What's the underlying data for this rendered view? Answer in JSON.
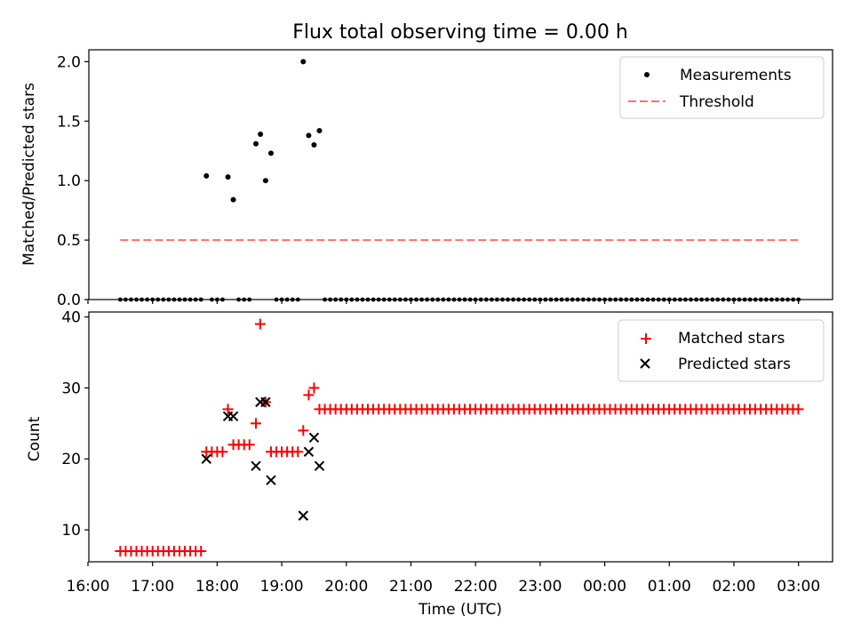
{
  "chart_data": {
    "title": "Flux total observing time = 0.00 h",
    "x_tick_labels": [
      "16:00",
      "17:00",
      "18:00",
      "19:00",
      "20:00",
      "21:00",
      "22:00",
      "23:00",
      "00:00",
      "01:00",
      "02:00",
      "03:00"
    ],
    "xlabel": "Time (UTC)",
    "x_unit": "hours since 16:00 UTC",
    "colors": {
      "measurement": "#000000",
      "threshold": "#ff6f6f",
      "matched": "#ff0000",
      "predicted": "#000000"
    },
    "panels": [
      {
        "type": "scatter",
        "ylabel": "Matched/Predicted stars",
        "ylim": [
          0,
          2.1
        ],
        "yticks": [
          0.0,
          0.5,
          1.0,
          1.5,
          2.0
        ],
        "ytick_labels": [
          "0.0",
          "0.5",
          "1.0",
          "1.5",
          "2.0"
        ],
        "legend_position": "top-right",
        "legend": [
          "Measurements",
          "Threshold"
        ],
        "measurements_nonzero": [
          {
            "x": 1.833,
            "y": 1.04
          },
          {
            "x": 2.167,
            "y": 1.03
          },
          {
            "x": 2.25,
            "y": 0.84
          },
          {
            "x": 2.6,
            "y": 1.31
          },
          {
            "x": 2.67,
            "y": 1.39
          },
          {
            "x": 2.75,
            "y": 1.0
          },
          {
            "x": 2.833,
            "y": 1.23
          },
          {
            "x": 3.333,
            "y": 2.0
          },
          {
            "x": 3.417,
            "y": 1.38
          },
          {
            "x": 3.5,
            "y": 1.3
          },
          {
            "x": 3.583,
            "y": 1.42
          }
        ],
        "zero_measurements_x": [
          0.5,
          0.583,
          0.667,
          0.75,
          0.833,
          0.917,
          1.0,
          1.083,
          1.167,
          1.25,
          1.333,
          1.417,
          1.5,
          1.583,
          1.667,
          1.75,
          1.917,
          2.0,
          2.083,
          2.333,
          2.417,
          2.5,
          2.917,
          3.0,
          3.083,
          3.167,
          3.25,
          3.667,
          3.75,
          3.833,
          3.917,
          4.0,
          4.083,
          4.167,
          4.25,
          4.333,
          4.417,
          4.5,
          4.583,
          4.667,
          4.75,
          4.833,
          4.917,
          5.0,
          5.083,
          5.167,
          5.25,
          5.333,
          5.417,
          5.5,
          5.583,
          5.667,
          5.75,
          5.833,
          5.917,
          6.0,
          6.083,
          6.167,
          6.25,
          6.333,
          6.417,
          6.5,
          6.583,
          6.667,
          6.75,
          6.833,
          6.917,
          7.0,
          7.083,
          7.167,
          7.25,
          7.333,
          7.417,
          7.5,
          7.583,
          7.667,
          7.75,
          7.833,
          7.917,
          8.0,
          8.083,
          8.167,
          8.25,
          8.333,
          8.417,
          8.5,
          8.583,
          8.667,
          8.75,
          8.833,
          8.917,
          9.0,
          9.083,
          9.167,
          9.25,
          9.333,
          9.417,
          9.5,
          9.583,
          9.667,
          9.75,
          9.833,
          9.917,
          10.0,
          10.083,
          10.167,
          10.25,
          10.333,
          10.417,
          10.5,
          10.583,
          10.667,
          10.75,
          10.833,
          10.917,
          11.0
        ],
        "threshold": {
          "y": 0.5,
          "x_start": 0.5,
          "x_end": 11.0
        }
      },
      {
        "type": "scatter",
        "ylabel": "Count",
        "ylim": [
          5.5,
          40.7
        ],
        "yticks": [
          10,
          20,
          30,
          40
        ],
        "ytick_labels": [
          "10",
          "20",
          "30",
          "40"
        ],
        "legend_position": "top-right",
        "legend": [
          "Matched stars",
          "Predicted stars"
        ],
        "matched_stars": [
          {
            "x": 0.5,
            "y": 7
          },
          {
            "x": 0.583,
            "y": 7
          },
          {
            "x": 0.667,
            "y": 7
          },
          {
            "x": 0.75,
            "y": 7
          },
          {
            "x": 0.833,
            "y": 7
          },
          {
            "x": 0.917,
            "y": 7
          },
          {
            "x": 1.0,
            "y": 7
          },
          {
            "x": 1.083,
            "y": 7
          },
          {
            "x": 1.167,
            "y": 7
          },
          {
            "x": 1.25,
            "y": 7
          },
          {
            "x": 1.333,
            "y": 7
          },
          {
            "x": 1.417,
            "y": 7
          },
          {
            "x": 1.5,
            "y": 7
          },
          {
            "x": 1.583,
            "y": 7
          },
          {
            "x": 1.667,
            "y": 7
          },
          {
            "x": 1.75,
            "y": 7
          },
          {
            "x": 1.833,
            "y": 21
          },
          {
            "x": 1.917,
            "y": 21
          },
          {
            "x": 2.0,
            "y": 21
          },
          {
            "x": 2.083,
            "y": 21
          },
          {
            "x": 2.167,
            "y": 27
          },
          {
            "x": 2.25,
            "y": 22
          },
          {
            "x": 2.333,
            "y": 22
          },
          {
            "x": 2.417,
            "y": 22
          },
          {
            "x": 2.5,
            "y": 22
          },
          {
            "x": 2.6,
            "y": 25
          },
          {
            "x": 2.667,
            "y": 39
          },
          {
            "x": 2.75,
            "y": 28
          },
          {
            "x": 2.833,
            "y": 21
          },
          {
            "x": 2.917,
            "y": 21
          },
          {
            "x": 3.0,
            "y": 21
          },
          {
            "x": 3.083,
            "y": 21
          },
          {
            "x": 3.167,
            "y": 21
          },
          {
            "x": 3.25,
            "y": 21
          },
          {
            "x": 3.333,
            "y": 24
          },
          {
            "x": 3.417,
            "y": 29
          },
          {
            "x": 3.5,
            "y": 30
          }
        ],
        "matched_plateau": {
          "y": 27,
          "x_start": 3.583,
          "x_end": 11.0,
          "step": 0.0833
        },
        "predicted_stars": [
          {
            "x": 1.833,
            "y": 20
          },
          {
            "x": 2.167,
            "y": 26
          },
          {
            "x": 2.25,
            "y": 26
          },
          {
            "x": 2.6,
            "y": 19
          },
          {
            "x": 2.667,
            "y": 28
          },
          {
            "x": 2.75,
            "y": 28
          },
          {
            "x": 2.833,
            "y": 17
          },
          {
            "x": 3.333,
            "y": 12
          },
          {
            "x": 3.417,
            "y": 21
          },
          {
            "x": 3.5,
            "y": 23
          },
          {
            "x": 3.583,
            "y": 19
          }
        ]
      }
    ]
  }
}
